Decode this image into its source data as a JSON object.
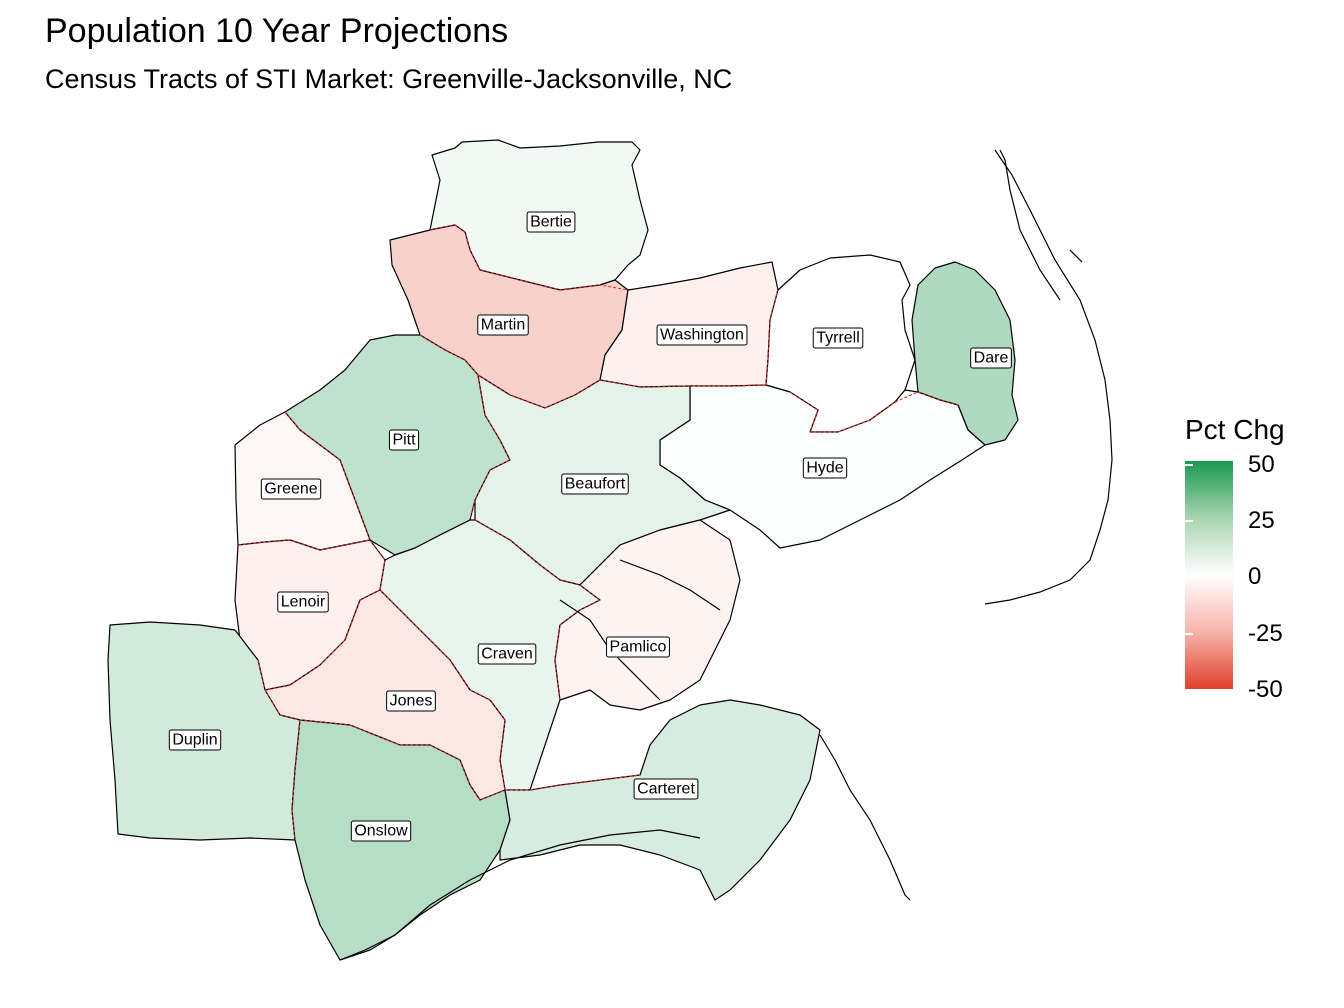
{
  "title": "Population 10 Year Projections",
  "subtitle": "Census Tracts of STI Market: Greenville-Jacksonville, NC",
  "legend": {
    "title": "Pct Chg",
    "ticks": [
      "50",
      "25",
      "0",
      "-25",
      "-50"
    ],
    "colors": {
      "high": "#1a9850",
      "mid": "#ffffff",
      "low": "#e0402a"
    },
    "range": [
      -50,
      50
    ]
  },
  "counties": [
    {
      "name": "Bertie",
      "pct_chg": 3
    },
    {
      "name": "Martin",
      "pct_chg": -12
    },
    {
      "name": "Washington",
      "pct_chg": -4
    },
    {
      "name": "Tyrrell",
      "pct_chg": 0
    },
    {
      "name": "Dare",
      "pct_chg": 18
    },
    {
      "name": "Pitt",
      "pct_chg": 14
    },
    {
      "name": "Greene",
      "pct_chg": -2
    },
    {
      "name": "Beaufort",
      "pct_chg": 6
    },
    {
      "name": "Hyde",
      "pct_chg": 1
    },
    {
      "name": "Lenoir",
      "pct_chg": -4
    },
    {
      "name": "Craven",
      "pct_chg": 5
    },
    {
      "name": "Pamlico",
      "pct_chg": -3
    },
    {
      "name": "Jones",
      "pct_chg": -6
    },
    {
      "name": "Duplin",
      "pct_chg": 10
    },
    {
      "name": "Onslow",
      "pct_chg": 16
    },
    {
      "name": "Carteret",
      "pct_chg": 9
    }
  ]
}
